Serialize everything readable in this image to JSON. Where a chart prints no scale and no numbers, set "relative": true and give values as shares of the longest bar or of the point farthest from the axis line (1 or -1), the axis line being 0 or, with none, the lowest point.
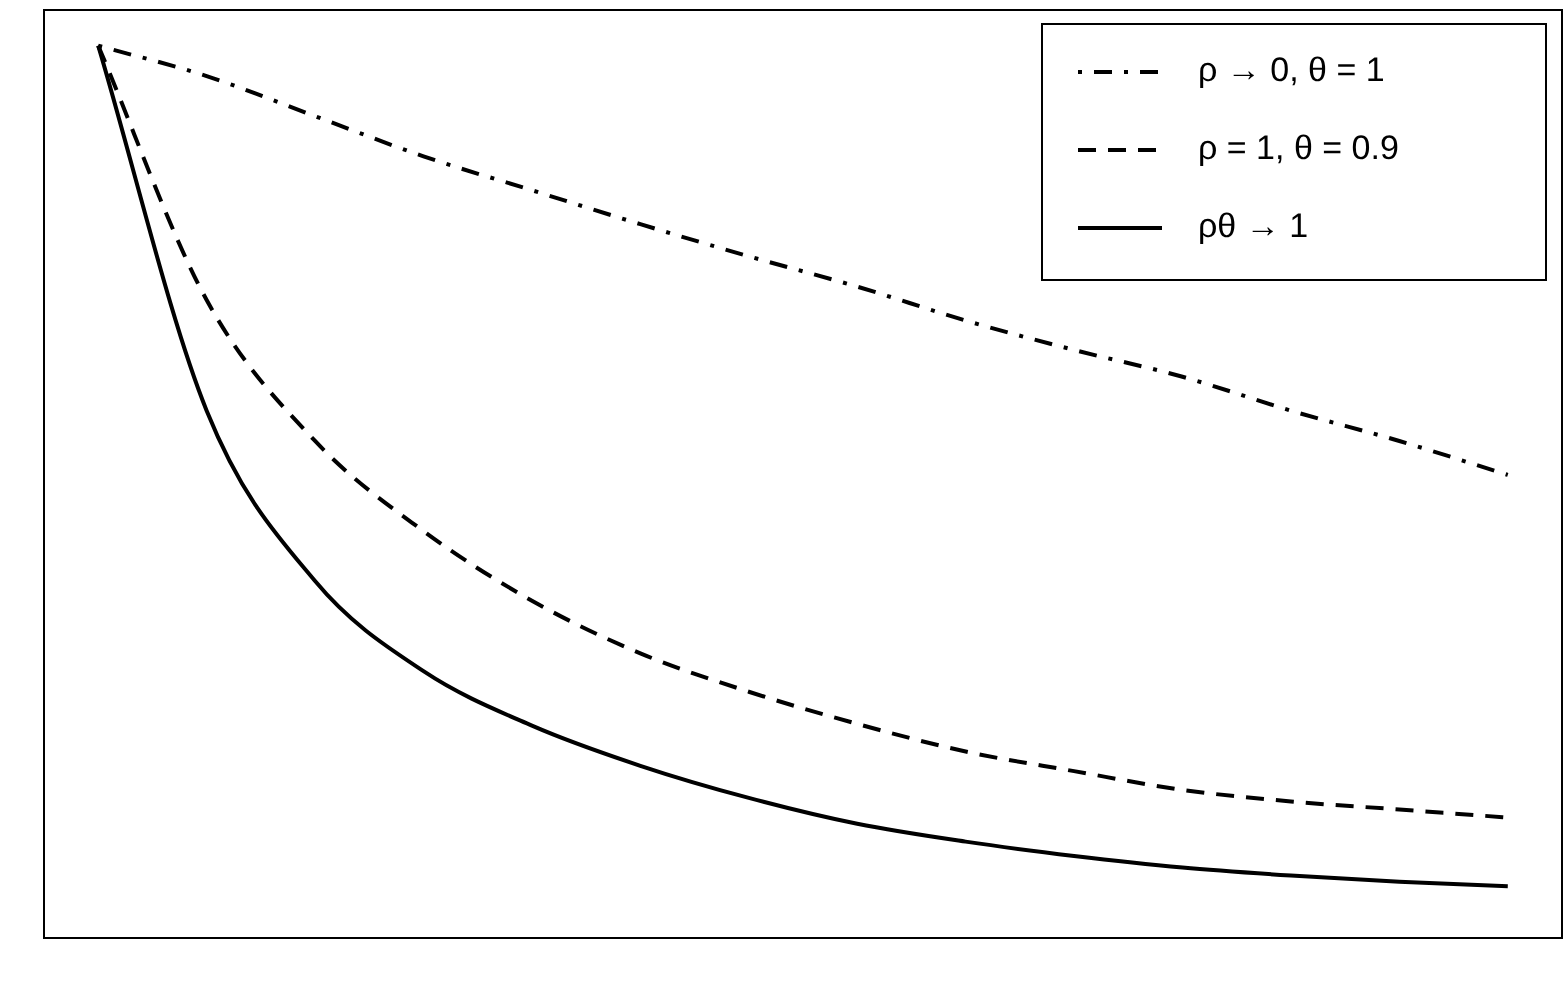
{
  "chart_data": {
    "type": "line",
    "relative": true,
    "tick_labels": false,
    "legend": "top right",
    "grid": false,
    "marker": "none",
    "categories": [
      null,
      null,
      null,
      null,
      null,
      null,
      null,
      null,
      null,
      null,
      null,
      null,
      null,
      null
    ],
    "series": [
      {
        "name": "ρ → 0, θ = 1",
        "color": "#000000",
        "line_style": "dashdot",
        "values": [
          1,
          0.966,
          0.921,
          0.876,
          0.838,
          0.8,
          0.764,
          0.73,
          0.692,
          0.659,
          0.629,
          0.591,
          0.557,
          0.519
        ]
      },
      {
        "name": "ρ = 1, θ = 0.9",
        "color": "#000000",
        "line_style": "dashed",
        "values": [
          1,
          0.715,
          0.557,
          0.456,
          0.378,
          0.319,
          0.276,
          0.24,
          0.209,
          0.187,
          0.166,
          0.153,
          0.144,
          0.135
        ]
      },
      {
        "name": "ρθ → 1",
        "color": "#000000",
        "line_style": "solid",
        "values": [
          1,
          0.591,
          0.4,
          0.299,
          0.238,
          0.193,
          0.157,
          0.128,
          0.108,
          0.092,
          0.079,
          0.07,
          0.063,
          0.058
        ]
      }
    ]
  }
}
